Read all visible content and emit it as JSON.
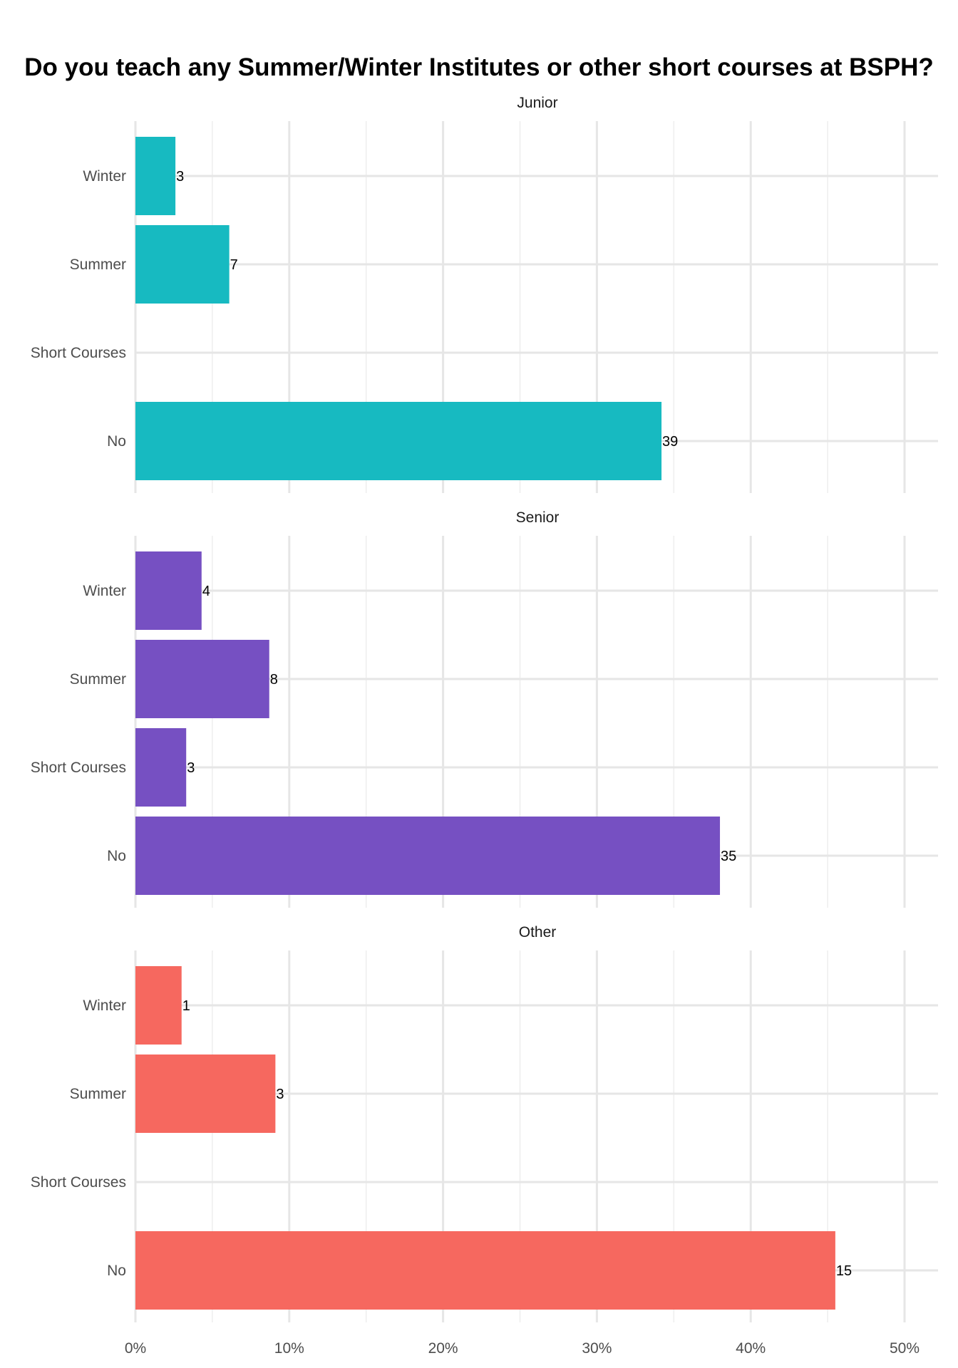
{
  "chart_data": {
    "type": "bar",
    "orientation": "horizontal",
    "title": "Do you teach any Summer/Winter Institutes or other short courses at BSPH?",
    "categories": [
      "Winter",
      "Summer",
      "Short Courses",
      "No"
    ],
    "x_ticks": [
      "0%",
      "10%",
      "20%",
      "30%",
      "40%",
      "50%"
    ],
    "xlim": [
      0,
      0.52
    ],
    "grid": true,
    "facets": [
      {
        "name": "Junior",
        "color": "#17BAC1",
        "bars": [
          {
            "category": "Winter",
            "value": 0.026,
            "label": "3"
          },
          {
            "category": "Summer",
            "value": 0.061,
            "label": "7"
          },
          {
            "category": "Short Courses",
            "value": 0,
            "label": ""
          },
          {
            "category": "No",
            "value": 0.342,
            "label": "39"
          }
        ]
      },
      {
        "name": "Senior",
        "color": "#7650C2",
        "bars": [
          {
            "category": "Winter",
            "value": 0.043,
            "label": "4"
          },
          {
            "category": "Summer",
            "value": 0.087,
            "label": "8"
          },
          {
            "category": "Short Courses",
            "value": 0.033,
            "label": "3"
          },
          {
            "category": "No",
            "value": 0.38,
            "label": "35"
          }
        ]
      },
      {
        "name": "Other",
        "color": "#F6685F",
        "bars": [
          {
            "category": "Winter",
            "value": 0.03,
            "label": "1"
          },
          {
            "category": "Summer",
            "value": 0.091,
            "label": "3"
          },
          {
            "category": "Short Courses",
            "value": 0,
            "label": ""
          },
          {
            "category": "No",
            "value": 0.455,
            "label": "15"
          }
        ]
      }
    ]
  }
}
